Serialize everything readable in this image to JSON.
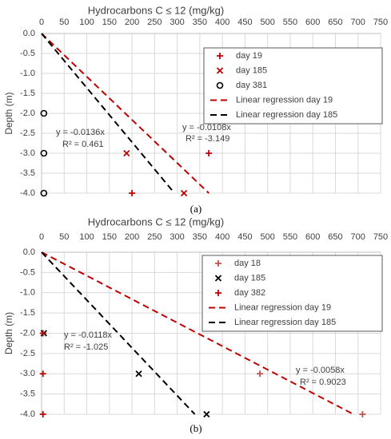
{
  "chart_data": [
    {
      "type": "scatter",
      "xlabel": "Hydrocarbons C ≤ 12 (mg/kg)",
      "ylabel": "Depth (m)",
      "caption": "(a)",
      "xlim": [
        0,
        750
      ],
      "xticks": [
        0,
        50,
        100,
        150,
        200,
        250,
        300,
        350,
        400,
        450,
        500,
        550,
        600,
        650,
        700,
        750
      ],
      "ylim": [
        -4,
        0
      ],
      "yticks": [
        {
          "value": 0,
          "label": "0.0"
        },
        -0.5,
        {
          "value": -1,
          "label": "-1.0"
        },
        -1.5,
        {
          "value": -2,
          "label": "-2.0"
        },
        -2.5,
        {
          "value": -3,
          "label": "-3.0"
        },
        -3.5,
        {
          "value": -4,
          "label": "-4.0"
        }
      ],
      "grid": true,
      "legend": "upper right",
      "series": [
        {
          "name": "day 19",
          "marker": "plus",
          "color": "#c00000",
          "x": [
            370,
            200
          ],
          "values": [
            -3,
            -4
          ]
        },
        {
          "name": "day 185",
          "marker": "x",
          "color": "#c00000",
          "x": [
            188,
            315
          ],
          "values": [
            -3,
            -4
          ]
        },
        {
          "name": "day 381",
          "marker": "circle",
          "color": "#000000",
          "x": [
            5,
            5,
            5
          ],
          "values": [
            -2,
            -3,
            -4
          ]
        },
        {
          "name": "Linear regression day 19",
          "marker": "dash",
          "color": "#c00000",
          "x": [
            0,
            370
          ],
          "values": [
            0,
            -4
          ]
        },
        {
          "name": "Linear regression day 185",
          "marker": "dash",
          "color": "#000000",
          "x": [
            0,
            294
          ],
          "values": [
            0,
            -4
          ]
        }
      ],
      "annotations": [
        "y = -0.0136x",
        "R² = 0.461",
        "y = -0.0108x",
        "R² = -3.149"
      ]
    },
    {
      "type": "scatter",
      "xlabel": "Hydrocarbons C ≤ 12 (mg/kg)",
      "ylabel": "Depth (m)",
      "caption": "(b)",
      "xlim": [
        0,
        750
      ],
      "xticks": [
        0,
        50,
        100,
        150,
        200,
        250,
        300,
        350,
        400,
        450,
        500,
        550,
        600,
        650,
        700,
        750
      ],
      "ylim": [
        -4,
        0
      ],
      "yticks": [
        {
          "value": 0,
          "label": "0.0"
        },
        -0.5,
        {
          "value": -1,
          "label": "-1.0"
        },
        -1.5,
        {
          "value": -2,
          "label": "-2.0"
        },
        -2.5,
        {
          "value": -3,
          "label": "-3.0"
        },
        -3.5,
        {
          "value": -4,
          "label": "-4.0"
        }
      ],
      "grid": true,
      "legend": "upper right",
      "series": [
        {
          "name": "day 18",
          "marker": "plus",
          "color": "#c0504d",
          "x": [
            483,
            710
          ],
          "values": [
            -3,
            -4
          ]
        },
        {
          "name": "day 185",
          "marker": "x",
          "color": "#000000",
          "x": [
            5,
            215,
            365
          ],
          "values": [
            -2,
            -3,
            -4
          ]
        },
        {
          "name": "day 382",
          "marker": "plus",
          "color": "#c00000",
          "x": [
            3,
            3,
            3
          ],
          "values": [
            -2,
            -3,
            -4
          ]
        },
        {
          "name": "Linear regression day 19",
          "marker": "dash",
          "color": "#c00000",
          "x": [
            0,
            690
          ],
          "values": [
            0,
            -4
          ]
        },
        {
          "name": "Linear regression day 185",
          "marker": "dash",
          "color": "#000000",
          "x": [
            0,
            339
          ],
          "values": [
            0,
            -4
          ]
        }
      ],
      "annotations": [
        "y = -0.0118x",
        "R² = -1.025",
        "y = -0.0058x",
        "R² = 0.9023"
      ]
    }
  ]
}
